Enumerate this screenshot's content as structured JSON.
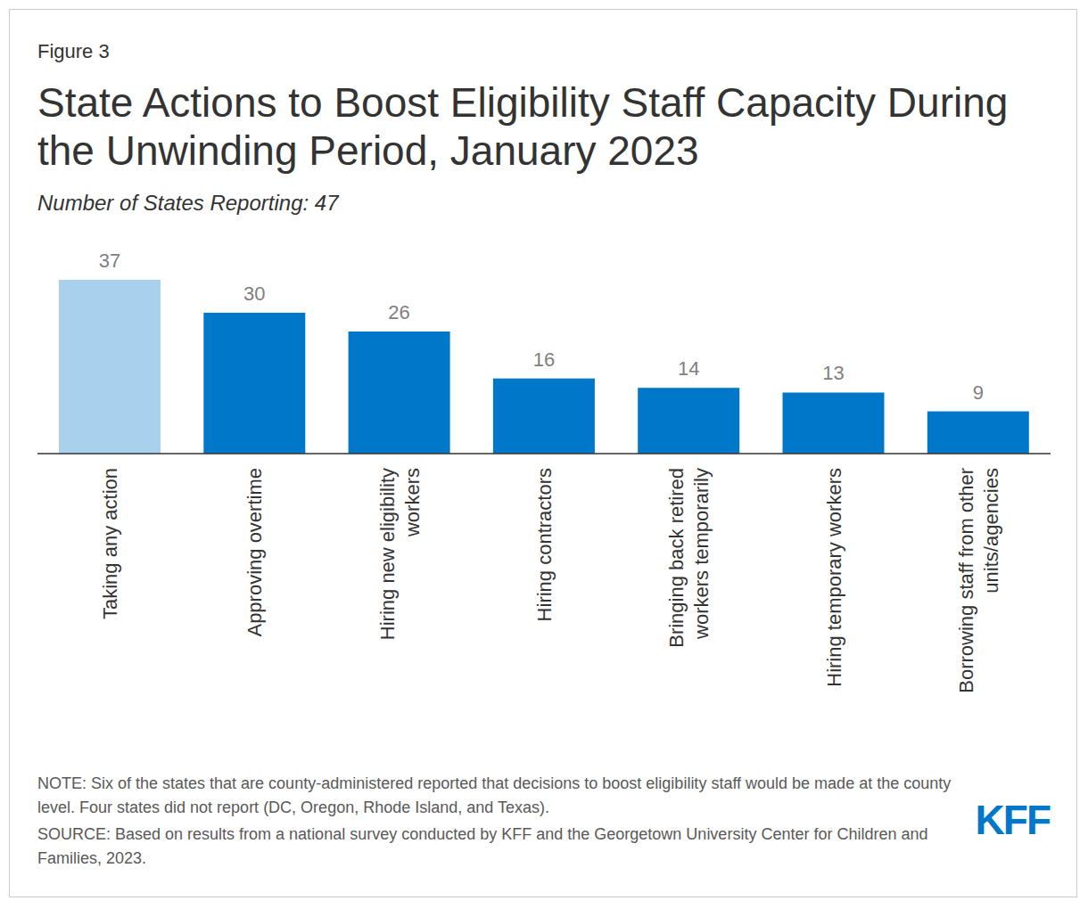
{
  "chart_data": {
    "type": "bar",
    "figure_label": "Figure 3",
    "title": "State Actions to Boost Eligibility Staff Capacity During the Unwinding Period, January 2023",
    "subtitle": "Number of States Reporting: 47",
    "categories": [
      "Taking any action",
      "Approving overtime",
      "Hiring new eligibility workers",
      "Hiring contractors",
      "Bringing back retired workers temporarily",
      "Hiring temporary workers",
      "Borrowing staff from other units/agencies"
    ],
    "values": [
      37,
      30,
      26,
      16,
      14,
      13,
      9
    ],
    "colors": [
      "#a9d1ee",
      "#0077c8",
      "#0077c8",
      "#0077c8",
      "#0077c8",
      "#0077c8",
      "#0077c8"
    ],
    "ylim": [
      0,
      37
    ],
    "data_labels": true,
    "tick_labels": "x",
    "note": "NOTE: Six of the states that are county-administered reported that decisions to boost eligibility staff would be made at the county level. Four states did not report (DC, Oregon, Rhode Island, and Texas).",
    "source": "SOURCE: Based on results from a national survey conducted by KFF and the Georgetown University Center for Children and Families, 2023.",
    "logo": "KFF"
  }
}
